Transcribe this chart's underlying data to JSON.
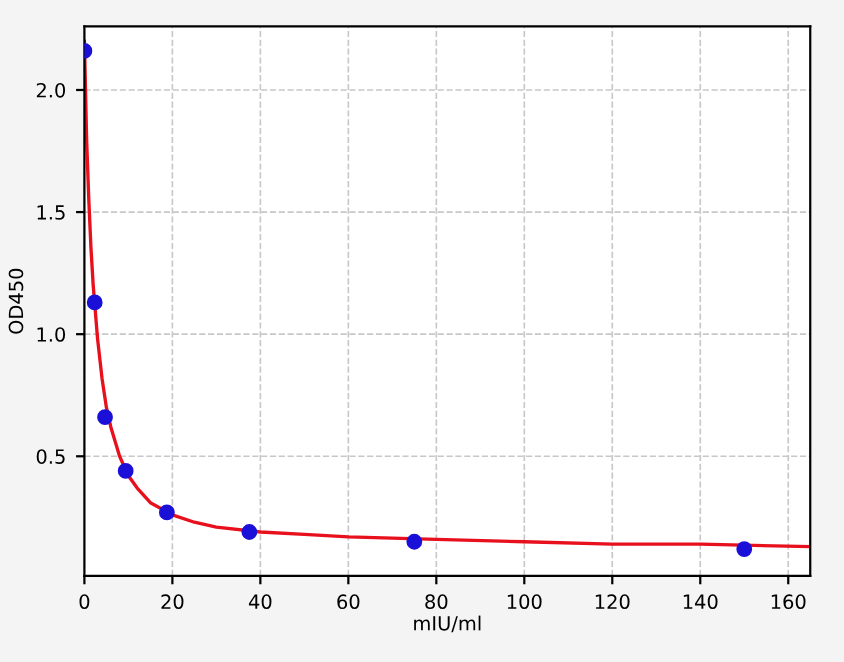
{
  "chart_data": {
    "type": "scatter",
    "xlabel": "mIU/ml",
    "ylabel": "OD450",
    "xlim": [
      0,
      165
    ],
    "ylim": [
      0.01,
      2.26
    ],
    "xticks": [
      0,
      20,
      40,
      60,
      80,
      100,
      120,
      140,
      160
    ],
    "yticks": [
      {
        "value": 0.5,
        "label": "0.5"
      },
      {
        "value": 1.0,
        "label": "1.0"
      },
      {
        "value": 1.5,
        "label": "1.5"
      },
      {
        "value": 2.0,
        "label": "2.0"
      }
    ],
    "grid": true,
    "legend": false,
    "series": [
      {
        "type": "line",
        "color": "#e8101c",
        "marker": "none",
        "line_style": "solid",
        "x": [
          0,
          0.5,
          1,
          1.5,
          2,
          3,
          4,
          5,
          6,
          8,
          10,
          12,
          15,
          20,
          25,
          30,
          40,
          50,
          60,
          80,
          100,
          120,
          140,
          165
        ],
        "values": [
          2.2,
          1.8,
          1.55,
          1.35,
          1.2,
          0.98,
          0.82,
          0.7,
          0.62,
          0.5,
          0.42,
          0.37,
          0.31,
          0.26,
          0.23,
          0.21,
          0.19,
          0.18,
          0.17,
          0.16,
          0.15,
          0.14,
          0.14,
          0.13
        ]
      },
      {
        "color": "#1a10d8",
        "marker": "circle",
        "x": [
          0,
          2.34,
          4.69,
          9.38,
          18.75,
          37.5,
          75,
          150
        ],
        "values": [
          2.16,
          1.13,
          0.66,
          0.44,
          0.27,
          0.19,
          0.15,
          0.12
        ]
      }
    ]
  }
}
